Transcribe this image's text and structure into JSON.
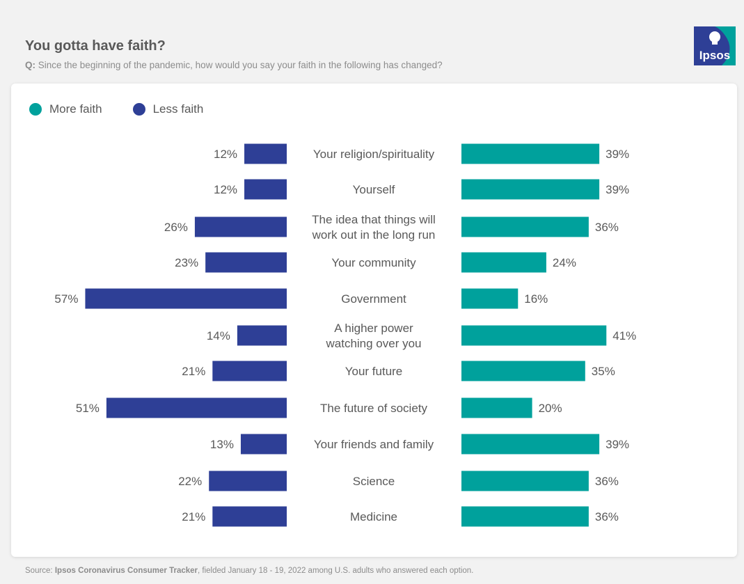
{
  "header": {
    "title": "You gotta have faith?",
    "question_prefix": "Q:",
    "question_text": "Since the beginning of the pandemic, how would you say your faith in the following has changed?"
  },
  "logo": {
    "text": "Ipsos",
    "color": "#009d9c",
    "accent": "#2d3f8f"
  },
  "footer": {
    "source_prefix": "Source:",
    "source_name": "Ipsos Coronavirus Consumer Tracker",
    "source_rest": ", fielded January 18 - 19, 2022 among U.S. adults who answered each option."
  },
  "colors": {
    "more": "#00a19c",
    "less": "#2e3f96"
  },
  "chart_data": {
    "type": "bar",
    "orientation": "horizontal-diverging",
    "title": "You gotta have faith?",
    "categories": [
      "Your religion/spirituality",
      "Yourself",
      "The idea that things will work out in the long run",
      "Your community",
      "Government",
      "A higher power watching over you",
      "Your future",
      "The future of society",
      "Your friends and family",
      "Science",
      "Medicine"
    ],
    "series": [
      {
        "name": "More faith",
        "values": [
          39,
          39,
          36,
          24,
          16,
          41,
          35,
          20,
          39,
          36,
          36
        ]
      },
      {
        "name": "Less faith",
        "values": [
          12,
          12,
          26,
          23,
          57,
          14,
          21,
          51,
          13,
          22,
          21
        ]
      }
    ],
    "value_suffix": "%",
    "legend_position": "top-left",
    "xlim": [
      0,
      60
    ]
  }
}
